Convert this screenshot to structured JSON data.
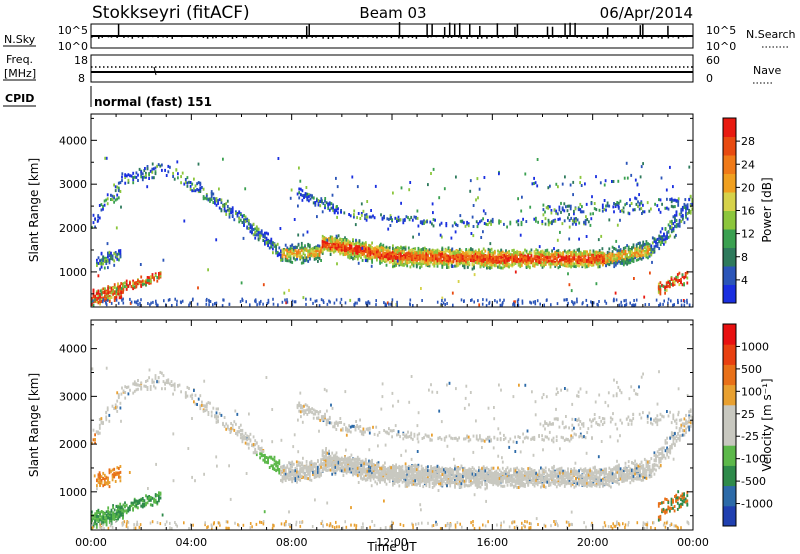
{
  "header": {
    "station": "Stokkseyri (fitACF)",
    "beam": "Beam 03",
    "date": "06/Apr/2014"
  },
  "strip_panels": {
    "nsky": {
      "left_label": "N.Sky",
      "top_tick": "10^5",
      "bottom_tick": "10^0",
      "right_top_tick": "10^5",
      "right_bottom_tick": "10^0",
      "right_label": "N.Search"
    },
    "freq": {
      "left_label_top": "Freq.",
      "left_label_bottom": "[MHz]",
      "top_tick": "18",
      "bottom_tick": "8",
      "right_top_tick": "60",
      "right_bottom_tick": "0",
      "right_label": "Nave"
    },
    "cpid": {
      "left_label": "CPID",
      "value": "normal (fast) 151"
    }
  },
  "chart_data": [
    {
      "type": "heatmap",
      "name": "power",
      "ylabel": "Slant Range [km]",
      "ylim": [
        200,
        4600
      ],
      "y_ticks": [
        1000,
        2000,
        3000,
        4000
      ],
      "x_ticks": [
        "00:00",
        "04:00",
        "08:00",
        "12:00",
        "16:00",
        "20:00",
        "00:00"
      ],
      "colorbar": {
        "label": "Power [dB]",
        "ticks": [
          4,
          8,
          12,
          16,
          20,
          24,
          28
        ],
        "colors": [
          "#1a2fe0",
          "#2b55b8",
          "#2e7a5c",
          "#3aa050",
          "#8cc63c",
          "#d6d24a",
          "#f0a020",
          "#f07a18",
          "#e84a10",
          "#e81a10"
        ]
      }
    },
    {
      "type": "heatmap",
      "name": "velocity",
      "ylabel": "Slant Range [km]",
      "ylim": [
        200,
        4600
      ],
      "y_ticks": [
        1000,
        2000,
        3000,
        4000
      ],
      "x_ticks": [
        "00:00",
        "04:00",
        "08:00",
        "12:00",
        "16:00",
        "20:00",
        "00:00"
      ],
      "xlabel": "Time UT",
      "colorbar": {
        "label": "Velocity [m s⁻¹]",
        "ticks": [
          1000,
          500,
          100,
          25,
          -25,
          -100,
          -500,
          -1000
        ],
        "colors": [
          "#2040b0",
          "#2c6aa8",
          "#2e8a4a",
          "#5cb84a",
          "#c8c8c0",
          "#c8c8c0",
          "#e8a030",
          "#e87018",
          "#e84010",
          "#e81010"
        ]
      }
    }
  ]
}
